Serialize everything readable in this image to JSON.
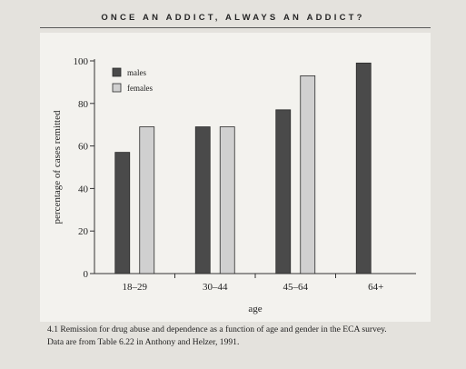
{
  "header": {
    "running_head": "ONCE AN ADDICT, ALWAYS AN ADDICT?"
  },
  "chart_data": {
    "type": "bar",
    "title": "",
    "categories": [
      "18–29",
      "30–44",
      "45–64",
      "64+"
    ],
    "series": [
      {
        "name": "males",
        "values": [
          57,
          69,
          77,
          99
        ],
        "color": "#4a4a4a"
      },
      {
        "name": "females",
        "values": [
          69,
          69,
          93,
          null
        ],
        "color": "#d0d0d0"
      }
    ],
    "xlabel": "age",
    "ylabel": "percentage of cases remitted",
    "ylim": [
      0,
      100
    ],
    "yticks": [
      0,
      20,
      40,
      60,
      80,
      100
    ],
    "grid": false,
    "legend": "top-left"
  },
  "caption": {
    "line1": "4.1 Remission for drug abuse and dependence as a function of age and gender in the ECA survey.",
    "line2": "Data are from Table 6.22 in Anthony and Helzer, 1991."
  }
}
